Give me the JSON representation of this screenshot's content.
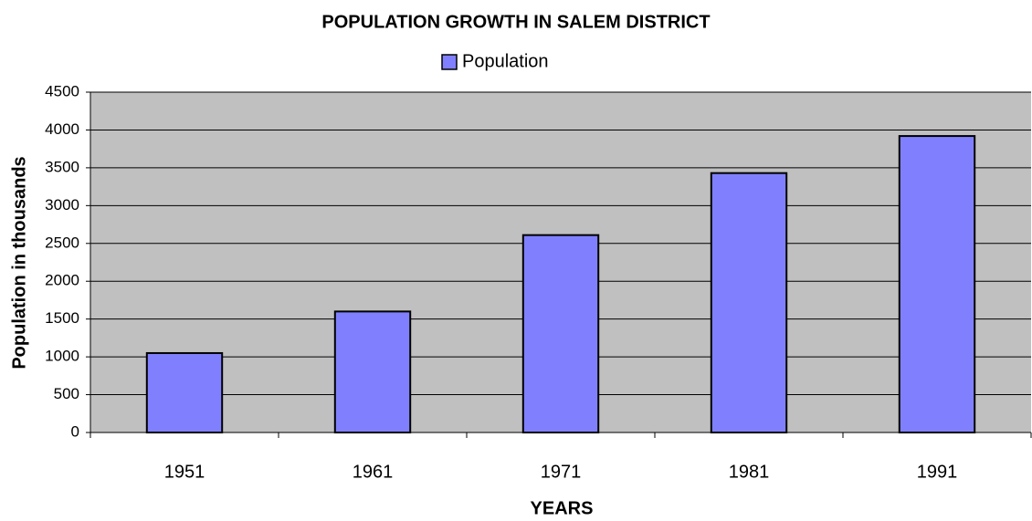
{
  "chart_data": {
    "type": "bar",
    "title": "POPULATION GROWTH IN SALEM DISTRICT",
    "x_label": "YEARS",
    "y_label": "Population in thousands",
    "categories": [
      "1951",
      "1961",
      "1971",
      "1981",
      "1991"
    ],
    "series": [
      {
        "name": "Population",
        "color": "#8080ff",
        "values": [
          1050,
          1600,
          2610,
          3430,
          3920
        ]
      }
    ],
    "ylim": [
      0,
      4500
    ],
    "yticks": [
      0,
      500,
      1000,
      1500,
      2000,
      2500,
      3000,
      3500,
      4000,
      4500
    ],
    "grid": true,
    "legend": "top"
  }
}
